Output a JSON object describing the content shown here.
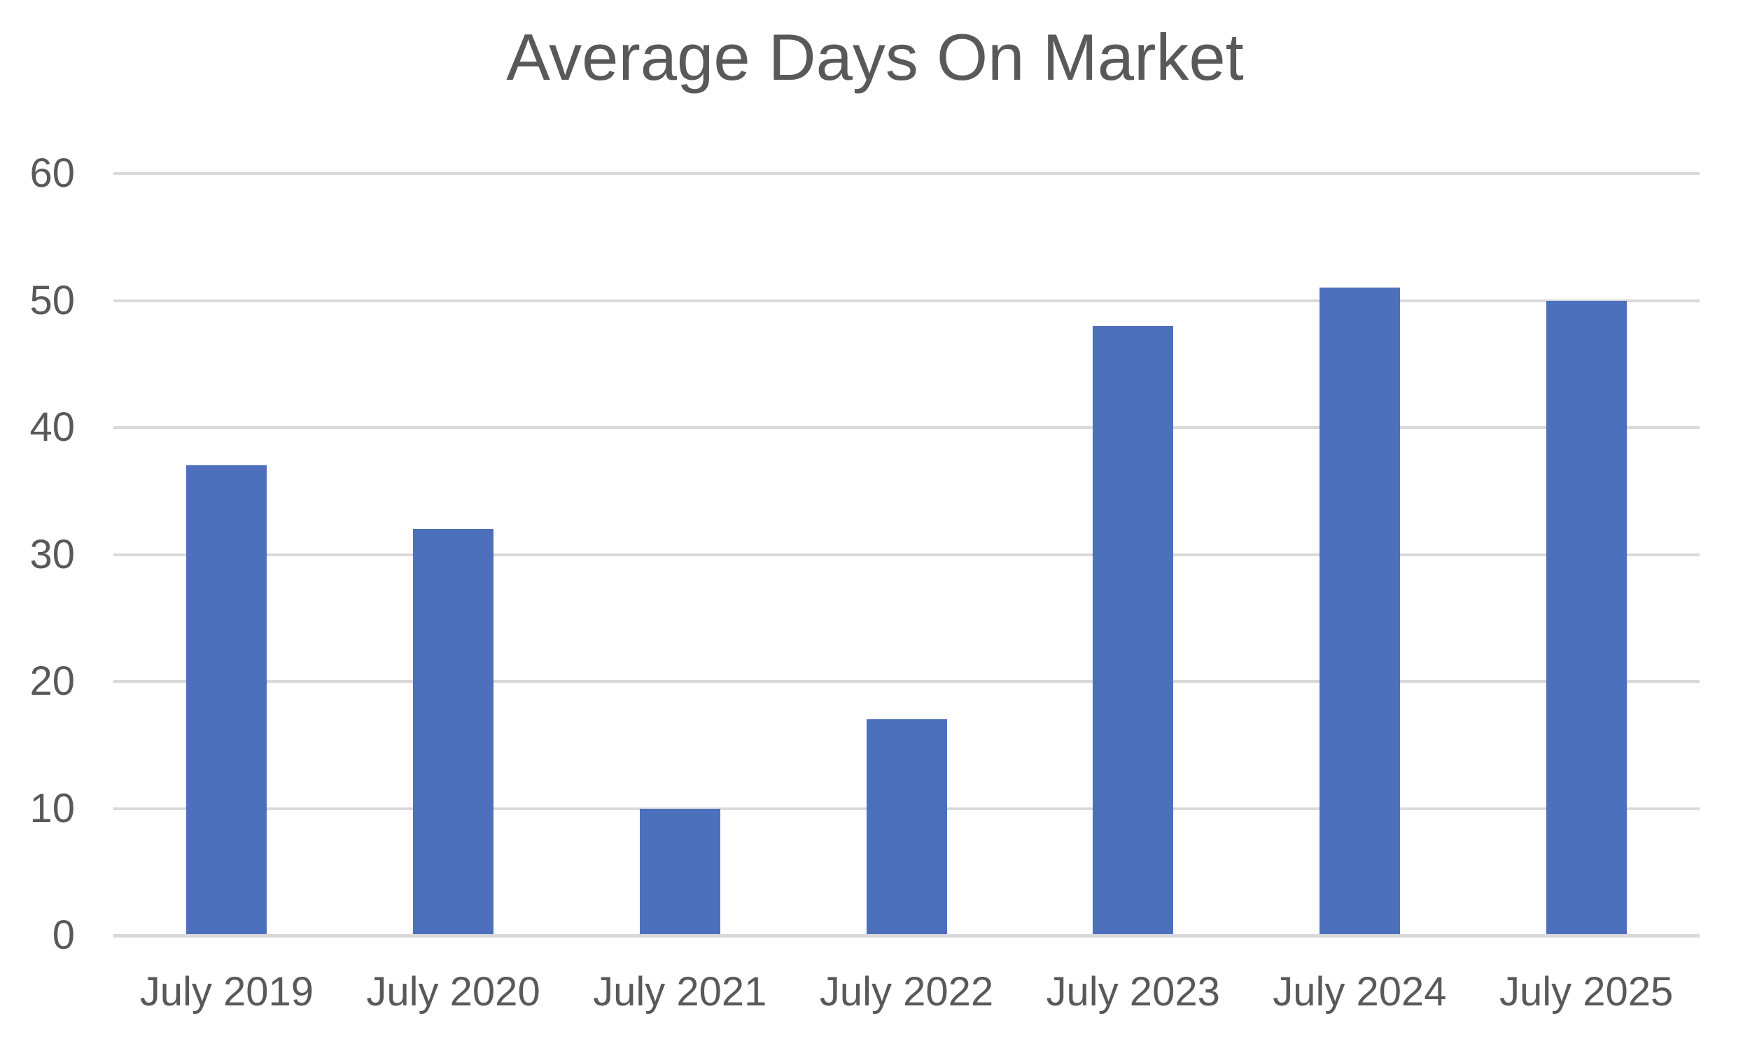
{
  "chart_data": {
    "type": "bar",
    "title": "Average Days On Market",
    "categories": [
      "July 2019",
      "July 2020",
      "July 2021",
      "July 2022",
      "July 2023",
      "July 2024",
      "July 2025"
    ],
    "values": [
      37,
      32,
      10,
      17,
      48,
      51,
      50
    ],
    "xlabel": "",
    "ylabel": "",
    "ylim": [
      0,
      60
    ],
    "yticks": [
      0,
      10,
      20,
      30,
      40,
      50,
      60
    ],
    "grid": true,
    "legend": false,
    "colors": {
      "bar": "#4d70bd",
      "gridline": "#d9d9d9",
      "axis_line": "#d9d9d9",
      "title_text": "#595959",
      "tick_text": "#595959",
      "background": "#ffffff"
    }
  }
}
